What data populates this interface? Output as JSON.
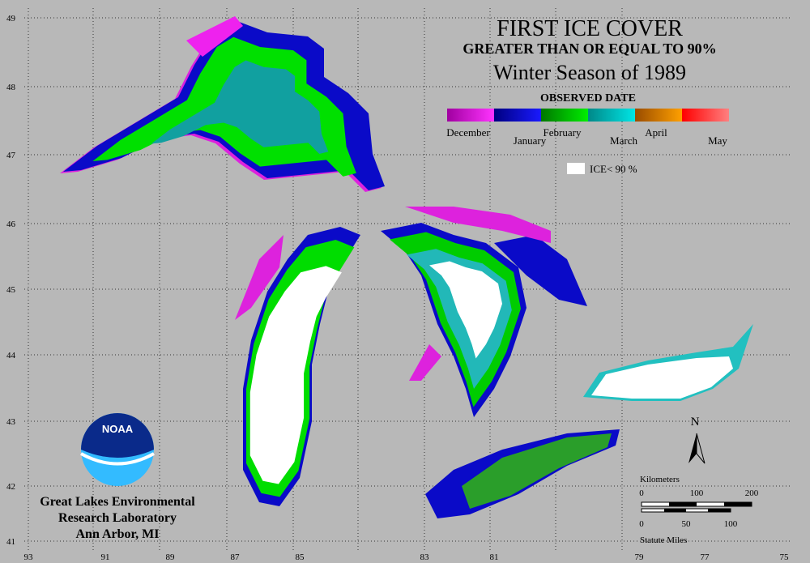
{
  "title": "FIRST ICE COVER",
  "subtitle": "GREATER THAN OR EQUAL TO 90%",
  "season": "Winter Season of 1989",
  "legend": {
    "title": "OBSERVED DATE",
    "items": [
      {
        "label": "December",
        "colors": [
          "#a000a0",
          "#ff33ff"
        ]
      },
      {
        "label": "January",
        "colors": [
          "#000080",
          "#1a1aff"
        ]
      },
      {
        "label": "February",
        "colors": [
          "#007700",
          "#00ee00"
        ]
      },
      {
        "label": "March",
        "colors": [
          "#008888",
          "#00e5e5"
        ]
      },
      {
        "label": "April",
        "colors": [
          "#994c00",
          "#ffa000"
        ]
      },
      {
        "label": "May",
        "colors": [
          "#ff0000",
          "#ff8080"
        ]
      }
    ],
    "low_ice": "ICE< 90 %"
  },
  "latitudes": [
    "49",
    "48",
    "47",
    "46",
    "45",
    "44",
    "43",
    "42",
    "41"
  ],
  "longitudes": [
    "93",
    "91",
    "89",
    "87",
    "85",
    "83",
    "81",
    "79",
    "77",
    "75"
  ],
  "north": "N",
  "scale": {
    "km_title": "Kilometers",
    "km_ticks": [
      "0",
      "100",
      "200"
    ],
    "mi_ticks": [
      "0",
      "50",
      "100"
    ],
    "mi_title": "Statute Miles"
  },
  "logo": "NOAA",
  "credit": [
    "Great Lakes Environmental",
    "Research Laboratory",
    "Ann Arbor, MI"
  ]
}
